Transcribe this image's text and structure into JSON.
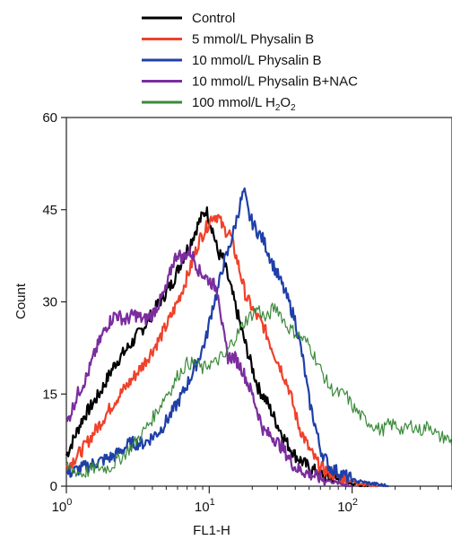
{
  "chart_data": {
    "type": "line",
    "title": "",
    "xlabel": "FL1-H",
    "ylabel": "Count",
    "xscale": "log",
    "xlim": [
      1,
      500
    ],
    "ylim": [
      0,
      60
    ],
    "grid": false,
    "legend_position": "top",
    "x_ticks": [
      {
        "value": 1,
        "base": "10",
        "exp": "0"
      },
      {
        "value": 10,
        "base": "10",
        "exp": "1"
      },
      {
        "value": 100,
        "base": "10",
        "exp": "2"
      }
    ],
    "y_ticks": [
      {
        "value": 0,
        "label": "0"
      },
      {
        "value": 15,
        "label": "15"
      },
      {
        "value": 30,
        "label": "30"
      },
      {
        "value": 45,
        "label": "45"
      },
      {
        "value": 60,
        "label": "60"
      }
    ],
    "legend": [
      {
        "text": "Control",
        "sub": "",
        "after": "",
        "color": "#000000"
      },
      {
        "text": "5 mmol/L Physalin B",
        "sub": "",
        "after": "",
        "color": "#f0412a"
      },
      {
        "text": "10 mmol/L Physalin B",
        "sub": "",
        "after": "",
        "color": "#1f3fa8"
      },
      {
        "text": "10 mmol/L Physalin B+NAC",
        "sub": "",
        "after": "",
        "color": "#7b2d9e"
      },
      {
        "text": "100 mmol/L H",
        "sub": "2",
        "after": "O",
        "sub2": "2",
        "color": "#3a8a3a"
      }
    ],
    "series": [
      {
        "color": "#000000",
        "width": 2.2,
        "points": [
          [
            1,
            5
          ],
          [
            1.3,
            11
          ],
          [
            1.7,
            15
          ],
          [
            2.2,
            20
          ],
          [
            2.8,
            23
          ],
          [
            3.5,
            26
          ],
          [
            4.5,
            30
          ],
          [
            5.5,
            33
          ],
          [
            6.5,
            37
          ],
          [
            7.5,
            40
          ],
          [
            8.5,
            43
          ],
          [
            9.5,
            45
          ],
          [
            10.5,
            42
          ],
          [
            11.5,
            38
          ],
          [
            12.5,
            37
          ],
          [
            13.5,
            34
          ],
          [
            15,
            30
          ],
          [
            17,
            25
          ],
          [
            19,
            21
          ],
          [
            22,
            16
          ],
          [
            25,
            14
          ],
          [
            30,
            10
          ],
          [
            35,
            7
          ],
          [
            40,
            5
          ],
          [
            50,
            3
          ],
          [
            60,
            2
          ],
          [
            80,
            1
          ],
          [
            100,
            0.5
          ],
          [
            130,
            0
          ]
        ]
      },
      {
        "color": "#f0412a",
        "width": 2.2,
        "points": [
          [
            1,
            3
          ],
          [
            1.3,
            6
          ],
          [
            1.7,
            10
          ],
          [
            2.2,
            14
          ],
          [
            2.8,
            17
          ],
          [
            3.5,
            20
          ],
          [
            4.5,
            24
          ],
          [
            5.5,
            28
          ],
          [
            6.5,
            32
          ],
          [
            7.5,
            36
          ],
          [
            8.5,
            40
          ],
          [
            9.5,
            42
          ],
          [
            10.5,
            44
          ],
          [
            11.5,
            44
          ],
          [
            12.5,
            42
          ],
          [
            14,
            41
          ],
          [
            16,
            36
          ],
          [
            18,
            31
          ],
          [
            21,
            28
          ],
          [
            24,
            26
          ],
          [
            28,
            22
          ],
          [
            32,
            19
          ],
          [
            36,
            16
          ],
          [
            42,
            10
          ],
          [
            50,
            6
          ],
          [
            60,
            3
          ],
          [
            80,
            1.5
          ],
          [
            110,
            0.5
          ],
          [
            150,
            0
          ]
        ]
      },
      {
        "color": "#1f3fa8",
        "width": 2.2,
        "points": [
          [
            1,
            2
          ],
          [
            1.3,
            3
          ],
          [
            1.7,
            4
          ],
          [
            2.2,
            5
          ],
          [
            2.8,
            7
          ],
          [
            3.5,
            7
          ],
          [
            4.5,
            9
          ],
          [
            5.5,
            12
          ],
          [
            6.5,
            15
          ],
          [
            7.5,
            18
          ],
          [
            8.5,
            21
          ],
          [
            9.5,
            24
          ],
          [
            10.5,
            29
          ],
          [
            11.5,
            32
          ],
          [
            12.5,
            36
          ],
          [
            13.5,
            38
          ],
          [
            15,
            42
          ],
          [
            16.5,
            46
          ],
          [
            17.5,
            48
          ],
          [
            19,
            44
          ],
          [
            21,
            42
          ],
          [
            24,
            40
          ],
          [
            28,
            36
          ],
          [
            32,
            33
          ],
          [
            36,
            30
          ],
          [
            40,
            27
          ],
          [
            45,
            21
          ],
          [
            50,
            14
          ],
          [
            55,
            10
          ],
          [
            60,
            6
          ],
          [
            70,
            3
          ],
          [
            85,
            2
          ],
          [
            100,
            1
          ],
          [
            130,
            0.5
          ],
          [
            180,
            0
          ]
        ]
      },
      {
        "color": "#7b2d9e",
        "width": 2.2,
        "points": [
          [
            1,
            10
          ],
          [
            1.2,
            15
          ],
          [
            1.4,
            18
          ],
          [
            1.6,
            22
          ],
          [
            1.9,
            26
          ],
          [
            2.2,
            28
          ],
          [
            2.6,
            27
          ],
          [
            3,
            28
          ],
          [
            3.5,
            27
          ],
          [
            4,
            28
          ],
          [
            4.5,
            30
          ],
          [
            5,
            32
          ],
          [
            5.5,
            36
          ],
          [
            6,
            38
          ],
          [
            6.5,
            37
          ],
          [
            7,
            38
          ],
          [
            7.5,
            38
          ],
          [
            8.5,
            35
          ],
          [
            9.5,
            34
          ],
          [
            10.5,
            33
          ],
          [
            11.5,
            32
          ],
          [
            12.5,
            25
          ],
          [
            13.5,
            21
          ],
          [
            15,
            21
          ],
          [
            17,
            19
          ],
          [
            20,
            15
          ],
          [
            24,
            9
          ],
          [
            28,
            8
          ],
          [
            33,
            6
          ],
          [
            40,
            3
          ],
          [
            50,
            2
          ],
          [
            65,
            1
          ],
          [
            80,
            0.5
          ],
          [
            100,
            0
          ]
        ]
      },
      {
        "color": "#3a8a3a",
        "width": 1.2,
        "points": [
          [
            1,
            3
          ],
          [
            1.3,
            2
          ],
          [
            1.6,
            3
          ],
          [
            2,
            3
          ],
          [
            2.5,
            5
          ],
          [
            3,
            7
          ],
          [
            3.5,
            9
          ],
          [
            4,
            11
          ],
          [
            4.5,
            13
          ],
          [
            5,
            15
          ],
          [
            5.5,
            16
          ],
          [
            6,
            18
          ],
          [
            7,
            20
          ],
          [
            8,
            20
          ],
          [
            9,
            19
          ],
          [
            10,
            20
          ],
          [
            11,
            20
          ],
          [
            12,
            21
          ],
          [
            13,
            21
          ],
          [
            14,
            23
          ],
          [
            16,
            25
          ],
          [
            18,
            27
          ],
          [
            20,
            28
          ],
          [
            22,
            29
          ],
          [
            25,
            27
          ],
          [
            28,
            29
          ],
          [
            30,
            29
          ],
          [
            35,
            26
          ],
          [
            40,
            25
          ],
          [
            45,
            24
          ],
          [
            50,
            23
          ],
          [
            55,
            21
          ],
          [
            60,
            19
          ],
          [
            70,
            16
          ],
          [
            80,
            15
          ],
          [
            90,
            15
          ],
          [
            100,
            13
          ],
          [
            120,
            11
          ],
          [
            140,
            10
          ],
          [
            160,
            9
          ],
          [
            180,
            10
          ],
          [
            200,
            10
          ],
          [
            230,
            9
          ],
          [
            260,
            10
          ],
          [
            300,
            9
          ],
          [
            350,
            10
          ],
          [
            400,
            8
          ],
          [
            450,
            8
          ],
          [
            500,
            7
          ]
        ]
      }
    ]
  }
}
